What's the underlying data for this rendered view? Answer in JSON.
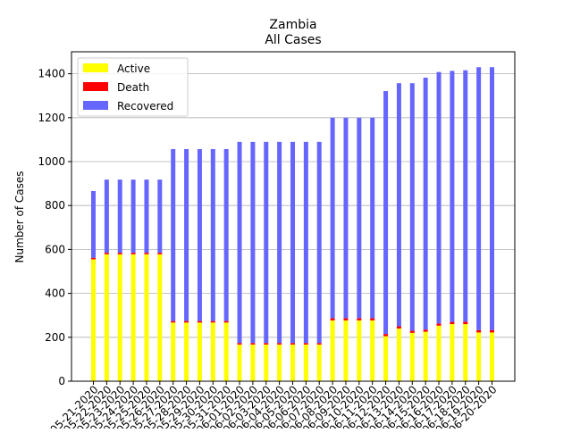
{
  "chart_data": {
    "type": "bar",
    "stacked": true,
    "title": "Zambia",
    "subtitle": "All Cases",
    "xlabel": "",
    "ylabel": "Number of Cases",
    "ylim": [
      0,
      1500
    ],
    "yticks": [
      0,
      200,
      400,
      600,
      800,
      1000,
      1200,
      1400
    ],
    "grid": "y",
    "legend_position": "top-left",
    "categories": [
      "05-21-2020",
      "05-22-2020",
      "05-23-2020",
      "05-24-2020",
      "05-25-2020",
      "05-26-2020",
      "05-27-2020",
      "05-28-2020",
      "05-29-2020",
      "05-30-2020",
      "05-31-2020",
      "06-01-2020",
      "06-02-2020",
      "06-03-2020",
      "06-04-2020",
      "06-05-2020",
      "06-06-2020",
      "06-07-2020",
      "06-08-2020",
      "06-09-2020",
      "06-10-2020",
      "06-11-2020",
      "06-12-2020",
      "06-13-2020",
      "06-14-2020",
      "06-15-2020",
      "06-16-2020",
      "06-17-2020",
      "06-18-2020",
      "06-19-2020",
      "06-20-2020"
    ],
    "tick_labels": [
      "05-21-2020",
      "05-22-2020",
      "05-23-2020",
      "05-24-2020",
      "05-25-2020",
      "05-26-2020",
      "05-27-2020",
      "05-28-2020",
      "05-29-2020",
      "05-30-2020",
      "05-31-2020",
      "06-01-2020",
      "06-02-2020",
      "06-03-2020",
      "06-04-2020",
      "06-05-2020",
      "06-06-2020",
      "06-07-2020",
      "06-08-2020",
      "06-09-2020",
      "06-10-2020",
      "06-11-2020",
      "06-12-2020",
      "06-13-2020",
      "06-14-2020",
      "06-15-2020",
      "06-16-2020",
      "06-17-2020",
      "06-18-2020",
      "06-19-2020",
      "06-20-2020"
    ],
    "series": [
      {
        "name": "Active",
        "color": "#ffff00",
        "values": [
          555,
          578,
          578,
          578,
          578,
          578,
          267,
          267,
          267,
          267,
          267,
          167,
          167,
          167,
          167,
          167,
          167,
          167,
          277,
          277,
          277,
          277,
          205,
          240,
          220,
          225,
          253,
          260,
          260,
          222,
          222
        ]
      },
      {
        "name": "Death",
        "color": "#ff0000",
        "values": [
          7,
          7,
          7,
          7,
          7,
          7,
          7,
          7,
          7,
          7,
          7,
          7,
          7,
          7,
          7,
          7,
          7,
          7,
          10,
          10,
          10,
          10,
          10,
          10,
          10,
          10,
          10,
          10,
          11,
          11,
          11
        ]
      },
      {
        "name": "Recovered",
        "color": "#6666ff",
        "values": [
          304,
          333,
          333,
          333,
          333,
          333,
          783,
          783,
          783,
          783,
          783,
          916,
          916,
          916,
          916,
          916,
          916,
          916,
          913,
          913,
          913,
          913,
          1106,
          1107,
          1127,
          1147,
          1145,
          1143,
          1145,
          1197,
          1197
        ]
      }
    ]
  }
}
